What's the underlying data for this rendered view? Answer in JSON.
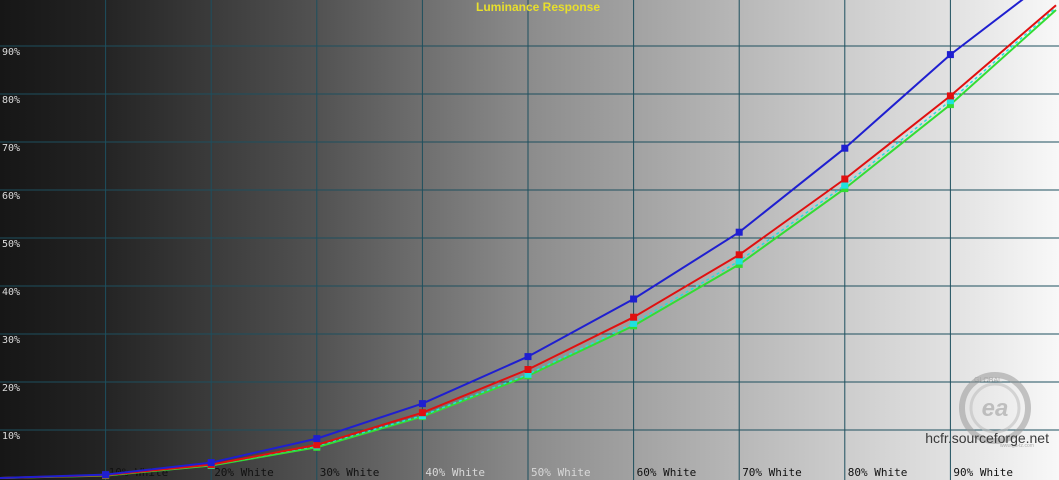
{
  "chart_data": {
    "type": "line",
    "title": "Luminance Response",
    "xlabel": "",
    "ylabel": "",
    "x": [
      0,
      10,
      20,
      30,
      40,
      50,
      60,
      70,
      80,
      90,
      100
    ],
    "categories": [
      "",
      "10% White",
      "20% White",
      "30% White",
      "40% White",
      "50% White",
      "60% White",
      "70% White",
      "80% White",
      "90% White",
      ""
    ],
    "y_ticks": [
      "10%",
      "20%",
      "30%",
      "40%",
      "50%",
      "60%",
      "70%",
      "80%",
      "90%"
    ],
    "xlim": [
      0,
      100
    ],
    "ylim": [
      0,
      100
    ],
    "grid": true,
    "series": [
      {
        "color": "#1f1fd0",
        "marker": "square",
        "values": [
          0,
          0.7,
          3.2,
          8.2,
          15.5,
          25.3,
          37.3,
          51.2,
          68.7,
          88.2,
          105
        ]
      },
      {
        "color": "#e01010",
        "marker": "square",
        "values": [
          0,
          0.6,
          2.8,
          6.9,
          13.6,
          22.6,
          33.5,
          46.5,
          62.3,
          79.6,
          98.5
        ]
      },
      {
        "color": "#33dd33",
        "marker": "square",
        "values": [
          0,
          0.5,
          2.6,
          6.4,
          12.8,
          21.3,
          31.7,
          44.5,
          60.3,
          77.8,
          97.5
        ]
      },
      {
        "color": "#20e0e0",
        "marker": "square",
        "dashed": true,
        "values": [
          0,
          0.6,
          2.7,
          6.7,
          13.0,
          21.6,
          32.2,
          45.2,
          61.0,
          78.6,
          98.0
        ]
      }
    ]
  },
  "watermark": {
    "text": "hcfr.sourceforge.net",
    "brand_top": "GLOBAL",
    "brand_logo": "ea",
    "brand_bottom": "www.ga-tz.com"
  }
}
